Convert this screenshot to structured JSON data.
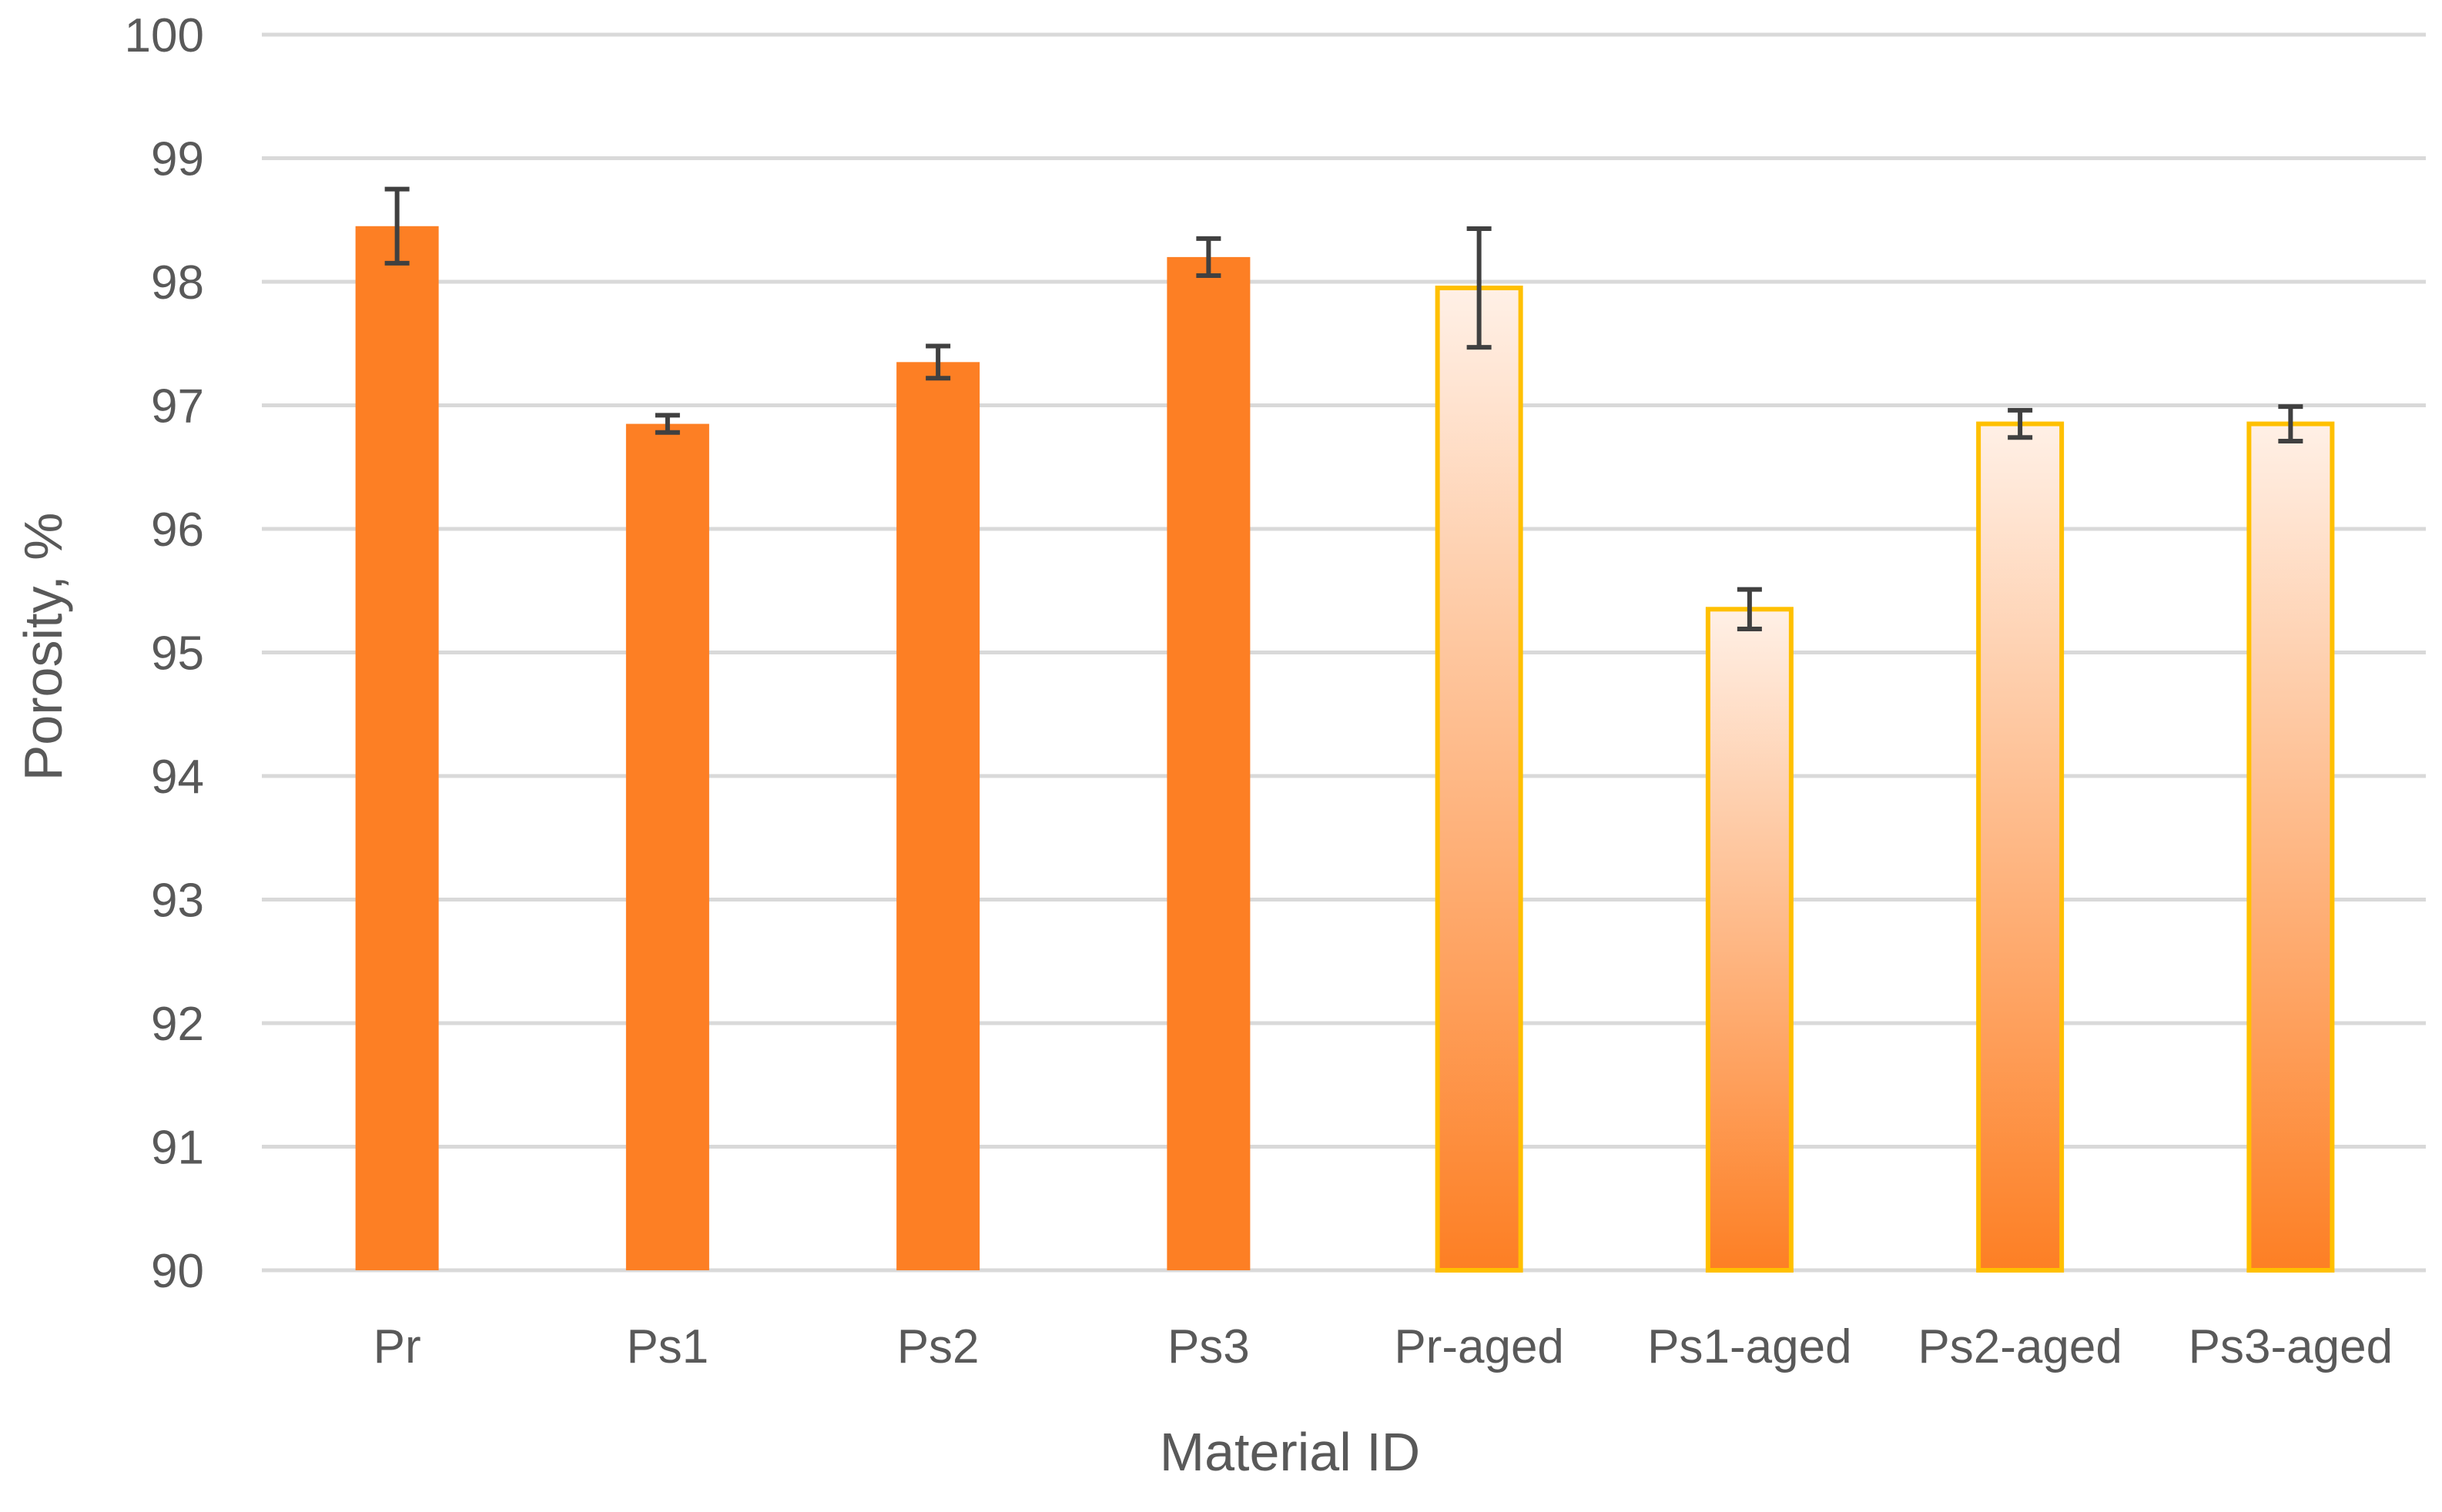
{
  "chart_data": {
    "type": "bar",
    "title": "",
    "xlabel": "Material ID",
    "ylabel": "Porosity, %",
    "ylim": [
      90,
      100
    ],
    "ytick_step": 1,
    "grid": true,
    "categories": [
      "Pr",
      "Ps1",
      "Ps2",
      "Ps3",
      "Pr-aged",
      "Ps1-aged",
      "Ps2-aged",
      "Ps3-aged"
    ],
    "values": [
      98.45,
      96.85,
      97.35,
      98.2,
      97.95,
      95.35,
      96.85,
      96.85
    ],
    "errors": [
      0.3,
      0.07,
      0.13,
      0.15,
      0.48,
      0.16,
      0.11,
      0.14
    ],
    "styles": [
      "solid",
      "solid",
      "solid",
      "solid",
      "gradient",
      "gradient",
      "gradient",
      "gradient"
    ],
    "colors": {
      "solid_fill": "#FD7F24",
      "gradient_top": "#FFF0E6",
      "gradient_bottom": "#FD7F24",
      "gradient_border": "#FFC000",
      "error_bar": "#404040",
      "gridline": "#D9D9D9",
      "text": "#595959"
    }
  }
}
